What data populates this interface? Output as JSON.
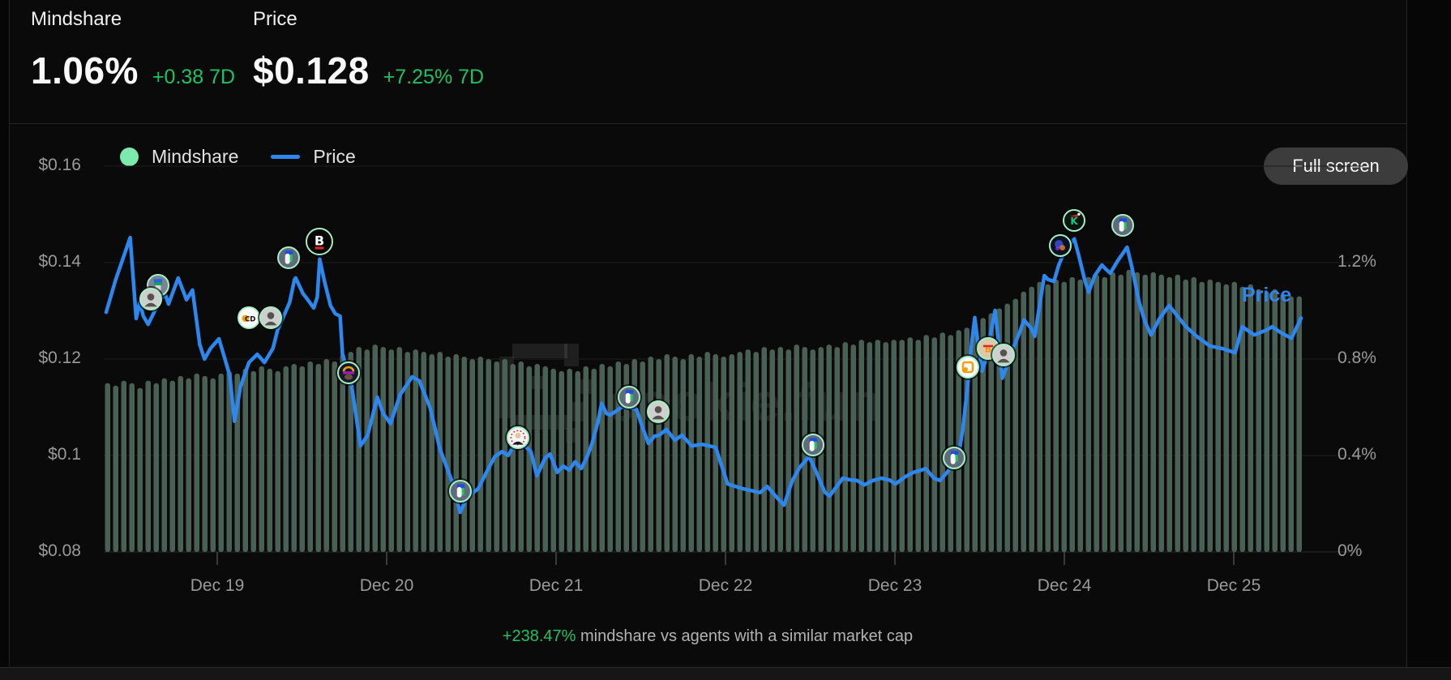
{
  "header": {
    "mindshare": {
      "label": "Mindshare",
      "value": "1.06%",
      "change": "+0.38 7D"
    },
    "price": {
      "label": "Price",
      "value": "$0.128",
      "change": "+7.25% 7D"
    }
  },
  "legend": {
    "mindshare_label": "Mindshare",
    "price_label": "Price"
  },
  "fullscreen_label": "Full screen",
  "watermark_text": "cookie.fun",
  "chart_price_tag": "Price",
  "footnote": {
    "highlight": "+238.47%",
    "text": " mindshare vs agents with a similar market cap"
  },
  "colors": {
    "background": "#0a0a0a",
    "bar": "#4a6054",
    "line": "#2e87ec",
    "mint": "#7ee9ad",
    "green_text": "#1fc163",
    "gray_text": "#9a9a9a",
    "grid": "#1d1d1d",
    "baseline": "#2c2c2c",
    "button_bg": "#3c3c3c",
    "tick": "#3a3a3a"
  },
  "chart_data": {
    "type": "combo-bar-line",
    "title": "",
    "grid": true,
    "legend_position": "top-left",
    "x_axis": {
      "labels": [
        "Dec 19",
        "Dec 20",
        "Dec 21",
        "Dec 22",
        "Dec 23",
        "Dec 24",
        "Dec 25"
      ]
    },
    "y_left": {
      "name": "price_usd",
      "ticks": [
        "$0.16",
        "$0.14",
        "$0.12",
        "$0.1",
        "$0.08"
      ],
      "tick_values": [
        0.16,
        0.14,
        0.12,
        0.1,
        0.08
      ],
      "range": [
        0.08,
        0.16
      ]
    },
    "y_right": {
      "name": "mindshare_pct",
      "ticks": [
        "1.2%",
        "0.8%",
        "0.4%",
        "0%"
      ],
      "tick_values": [
        1.2,
        0.8,
        0.4,
        0
      ],
      "range": [
        0,
        1.6
      ]
    },
    "series": [
      {
        "name": "Mindshare",
        "type": "bar",
        "unit": "%",
        "axis": "right",
        "values": [
          0.7,
          0.69,
          0.71,
          0.7,
          0.68,
          0.71,
          0.7,
          0.72,
          0.71,
          0.73,
          0.72,
          0.74,
          0.73,
          0.72,
          0.74,
          0.75,
          0.74,
          0.76,
          0.75,
          0.77,
          0.76,
          0.75,
          0.77,
          0.78,
          0.77,
          0.79,
          0.78,
          0.8,
          0.79,
          0.82,
          0.83,
          0.85,
          0.84,
          0.86,
          0.85,
          0.84,
          0.85,
          0.83,
          0.84,
          0.83,
          0.82,
          0.83,
          0.81,
          0.82,
          0.81,
          0.8,
          0.81,
          0.8,
          0.79,
          0.8,
          0.78,
          0.79,
          0.77,
          0.78,
          0.77,
          0.76,
          0.75,
          0.76,
          0.75,
          0.77,
          0.76,
          0.78,
          0.77,
          0.79,
          0.78,
          0.8,
          0.79,
          0.81,
          0.8,
          0.82,
          0.81,
          0.8,
          0.82,
          0.81,
          0.83,
          0.82,
          0.81,
          0.82,
          0.83,
          0.84,
          0.83,
          0.85,
          0.84,
          0.85,
          0.84,
          0.86,
          0.85,
          0.84,
          0.85,
          0.86,
          0.85,
          0.87,
          0.86,
          0.88,
          0.87,
          0.88,
          0.87,
          0.88,
          0.88,
          0.89,
          0.88,
          0.9,
          0.89,
          0.91,
          0.9,
          0.92,
          0.93,
          0.95,
          0.97,
          0.99,
          1.01,
          1.03,
          1.05,
          1.08,
          1.1,
          1.12,
          1.11,
          1.13,
          1.12,
          1.14,
          1.13,
          1.14,
          1.15,
          1.14,
          1.16,
          1.15,
          1.17,
          1.16,
          1.15,
          1.16,
          1.15,
          1.14,
          1.15,
          1.13,
          1.14,
          1.12,
          1.13,
          1.12,
          1.11,
          1.12,
          1.1,
          1.11,
          1.09,
          1.08,
          1.09,
          1.07,
          1.06,
          1.06
        ]
      },
      {
        "name": "Price",
        "type": "line",
        "unit": "USD",
        "axis": "left",
        "points": [
          [
            0.002,
            0.1297
          ],
          [
            0.01,
            0.1365
          ],
          [
            0.022,
            0.1452
          ],
          [
            0.027,
            0.1284
          ],
          [
            0.03,
            0.1318
          ],
          [
            0.033,
            0.1289
          ],
          [
            0.037,
            0.1272
          ],
          [
            0.047,
            0.1323
          ],
          [
            0.051,
            0.1336
          ],
          [
            0.054,
            0.1314
          ],
          [
            0.062,
            0.1368
          ],
          [
            0.069,
            0.1323
          ],
          [
            0.074,
            0.1343
          ],
          [
            0.08,
            0.123
          ],
          [
            0.084,
            0.12
          ],
          [
            0.089,
            0.1222
          ],
          [
            0.096,
            0.1242
          ],
          [
            0.101,
            0.12
          ],
          [
            0.105,
            0.1166
          ],
          [
            0.109,
            0.1071
          ],
          [
            0.114,
            0.1143
          ],
          [
            0.121,
            0.1193
          ],
          [
            0.128,
            0.121
          ],
          [
            0.134,
            0.1193
          ],
          [
            0.141,
            0.1222
          ],
          [
            0.145,
            0.1261
          ],
          [
            0.15,
            0.1289
          ],
          [
            0.155,
            0.1318
          ],
          [
            0.159,
            0.1365
          ],
          [
            0.16,
            0.1368
          ],
          [
            0.166,
            0.1336
          ],
          [
            0.17,
            0.1323
          ],
          [
            0.175,
            0.1306
          ],
          [
            0.178,
            0.1328
          ],
          [
            0.18,
            0.1407
          ],
          [
            0.184,
            0.1361
          ],
          [
            0.189,
            0.1311
          ],
          [
            0.193,
            0.1294
          ],
          [
            0.197,
            0.1289
          ],
          [
            0.199,
            0.121
          ],
          [
            0.203,
            0.1177
          ],
          [
            0.206,
            0.1155
          ],
          [
            0.214,
            0.102
          ],
          [
            0.22,
            0.1042
          ],
          [
            0.228,
            0.1121
          ],
          [
            0.233,
            0.1087
          ],
          [
            0.239,
            0.1066
          ],
          [
            0.247,
            0.1126
          ],
          [
            0.257,
            0.1163
          ],
          [
            0.263,
            0.1155
          ],
          [
            0.272,
            0.1099
          ],
          [
            0.28,
            0.1015
          ],
          [
            0.29,
            0.0948
          ],
          [
            0.297,
            0.0882
          ],
          [
            0.303,
            0.0914
          ],
          [
            0.312,
            0.0931
          ],
          [
            0.319,
            0.0965
          ],
          [
            0.326,
            0.0998
          ],
          [
            0.332,
            0.1008
          ],
          [
            0.337,
            0.1
          ],
          [
            0.343,
            0.1025
          ],
          [
            0.351,
            0.102
          ],
          [
            0.356,
            0.1008
          ],
          [
            0.361,
            0.0958
          ],
          [
            0.368,
            0.0995
          ],
          [
            0.372,
            0.1003
          ],
          [
            0.378,
            0.0965
          ],
          [
            0.383,
            0.0978
          ],
          [
            0.388,
            0.097
          ],
          [
            0.393,
            0.0987
          ],
          [
            0.398,
            0.0973
          ],
          [
            0.403,
            0.0998
          ],
          [
            0.407,
            0.1025
          ],
          [
            0.412,
            0.1071
          ],
          [
            0.415,
            0.1108
          ],
          [
            0.419,
            0.1087
          ],
          [
            0.422,
            0.1084
          ],
          [
            0.427,
            0.1092
          ],
          [
            0.432,
            0.1101
          ],
          [
            0.438,
            0.1099
          ],
          [
            0.444,
            0.1096
          ],
          [
            0.449,
            0.1059
          ],
          [
            0.454,
            0.1025
          ],
          [
            0.459,
            0.104
          ],
          [
            0.463,
            0.1042
          ],
          [
            0.469,
            0.1054
          ],
          [
            0.476,
            0.1032
          ],
          [
            0.482,
            0.1042
          ],
          [
            0.49,
            0.102
          ],
          [
            0.499,
            0.1023
          ],
          [
            0.51,
            0.1017
          ],
          [
            0.52,
            0.0941
          ],
          [
            0.533,
            0.0931
          ],
          [
            0.547,
            0.0923
          ],
          [
            0.553,
            0.0936
          ],
          [
            0.56,
            0.0916
          ],
          [
            0.567,
            0.0897
          ],
          [
            0.574,
            0.0948
          ],
          [
            0.58,
            0.0975
          ],
          [
            0.588,
            0.0998
          ],
          [
            0.594,
            0.0965
          ],
          [
            0.601,
            0.0924
          ],
          [
            0.605,
            0.0916
          ],
          [
            0.611,
            0.0936
          ],
          [
            0.616,
            0.0953
          ],
          [
            0.623,
            0.0949
          ],
          [
            0.628,
            0.0948
          ],
          [
            0.634,
            0.0939
          ],
          [
            0.641,
            0.0948
          ],
          [
            0.648,
            0.0953
          ],
          [
            0.655,
            0.0949
          ],
          [
            0.66,
            0.0941
          ],
          [
            0.668,
            0.0956
          ],
          [
            0.675,
            0.0965
          ],
          [
            0.682,
            0.097
          ],
          [
            0.685,
            0.0973
          ],
          [
            0.692,
            0.0953
          ],
          [
            0.697,
            0.0948
          ],
          [
            0.703,
            0.0965
          ],
          [
            0.709,
            0.0987
          ],
          [
            0.713,
            0.1008
          ],
          [
            0.716,
            0.1054
          ],
          [
            0.72,
            0.1143
          ],
          [
            0.723,
            0.1222
          ],
          [
            0.726,
            0.1286
          ],
          [
            0.729,
            0.1227
          ],
          [
            0.732,
            0.1175
          ],
          [
            0.736,
            0.1205
          ],
          [
            0.739,
            0.125
          ],
          [
            0.743,
            0.1301
          ],
          [
            0.747,
            0.1205
          ],
          [
            0.749,
            0.116
          ],
          [
            0.753,
            0.1188
          ],
          [
            0.758,
            0.1222
          ],
          [
            0.764,
            0.1259
          ],
          [
            0.767,
            0.1281
          ],
          [
            0.773,
            0.1264
          ],
          [
            0.776,
            0.1247
          ],
          [
            0.78,
            0.1311
          ],
          [
            0.784,
            0.1373
          ],
          [
            0.787,
            0.1365
          ],
          [
            0.792,
            0.1361
          ],
          [
            0.796,
            0.1395
          ],
          [
            0.801,
            0.1424
          ],
          [
            0.809,
            0.1449
          ],
          [
            0.813,
            0.1412
          ],
          [
            0.818,
            0.1361
          ],
          [
            0.821,
            0.1339
          ],
          [
            0.826,
            0.1373
          ],
          [
            0.832,
            0.1395
          ],
          [
            0.835,
            0.1387
          ],
          [
            0.839,
            0.1378
          ],
          [
            0.845,
            0.1403
          ],
          [
            0.853,
            0.1432
          ],
          [
            0.857,
            0.139
          ],
          [
            0.863,
            0.1318
          ],
          [
            0.868,
            0.1277
          ],
          [
            0.873,
            0.125
          ],
          [
            0.88,
            0.1284
          ],
          [
            0.888,
            0.1311
          ],
          [
            0.895,
            0.1289
          ],
          [
            0.902,
            0.1267
          ],
          [
            0.911,
            0.1247
          ],
          [
            0.922,
            0.1227
          ],
          [
            0.932,
            0.1222
          ],
          [
            0.943,
            0.1213
          ],
          [
            0.949,
            0.1267
          ],
          [
            0.959,
            0.125
          ],
          [
            0.969,
            0.126
          ],
          [
            0.974,
            0.1267
          ],
          [
            0.981,
            0.1255
          ],
          [
            0.99,
            0.1243
          ],
          [
            0.998,
            0.1285
          ]
        ]
      }
    ],
    "markers": [
      {
        "x": 0.045,
        "price": 0.1353,
        "icon": "pixel-hat"
      },
      {
        "x": 0.039,
        "price": 0.1324,
        "icon": "gray-portrait"
      },
      {
        "x": 0.121,
        "price": 0.1286,
        "icon": "cd-badge"
      },
      {
        "x": 0.139,
        "price": 0.1286,
        "icon": "gray-portrait"
      },
      {
        "x": 0.154,
        "price": 0.141,
        "icon": "penguin"
      },
      {
        "x": 0.18,
        "price": 0.1444,
        "icon": "b-badge"
      },
      {
        "x": 0.204,
        "price": 0.1172,
        "icon": "ape"
      },
      {
        "x": 0.297,
        "price": 0.0926,
        "icon": "penguin"
      },
      {
        "x": 0.345,
        "price": 0.1037,
        "icon": "suit-man"
      },
      {
        "x": 0.438,
        "price": 0.1121,
        "icon": "penguin"
      },
      {
        "x": 0.462,
        "price": 0.1091,
        "icon": "gray-portrait"
      },
      {
        "x": 0.591,
        "price": 0.1022,
        "icon": "penguin"
      },
      {
        "x": 0.709,
        "price": 0.0995,
        "icon": "penguin"
      },
      {
        "x": 0.72,
        "price": 0.1183,
        "icon": "orange-app"
      },
      {
        "x": 0.737,
        "price": 0.1222,
        "icon": "btc-glasses"
      },
      {
        "x": 0.75,
        "price": 0.1208,
        "icon": "gray-portrait"
      },
      {
        "x": 0.797,
        "price": 0.1435,
        "icon": "galaxy-lion"
      },
      {
        "x": 0.809,
        "price": 0.1487,
        "icon": "k-santa"
      },
      {
        "x": 0.849,
        "price": 0.1477,
        "icon": "penguin"
      }
    ]
  }
}
